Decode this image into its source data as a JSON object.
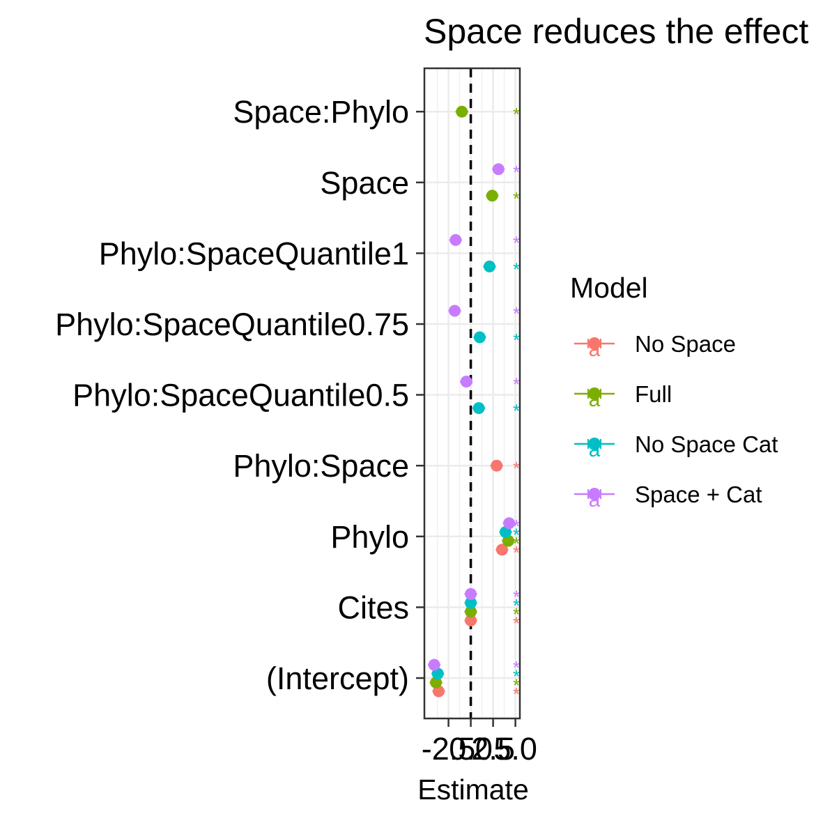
{
  "chart_data": {
    "type": "dot",
    "title": "Space reduces the effect",
    "xlabel": "Estimate",
    "ylabel": "",
    "xlim": [
      -5.2,
      5.5
    ],
    "xticks": [
      -2.5,
      0.0,
      2.5,
      5.0
    ],
    "xtick_labels": [
      "-2.5",
      "0.0",
      "2.5",
      "5.0"
    ],
    "reference_line_x": 0,
    "categories": [
      "(Intercept)",
      "Cites",
      "Phylo",
      "Phylo:Space",
      "Phylo:SpaceQuantile0.5",
      "Phylo:SpaceQuantile0.75",
      "Phylo:SpaceQuantile1",
      "Space",
      "Space:Phylo"
    ],
    "significance_marker": "*",
    "legend": {
      "title": "Model",
      "position": "right",
      "key_glyph": "a"
    },
    "series": [
      {
        "name": "No Space",
        "color": "#F8766D",
        "points": [
          {
            "term": "(Intercept)",
            "estimate": -3.6,
            "significant": true
          },
          {
            "term": "Cites",
            "estimate": 0.0,
            "significant": true
          },
          {
            "term": "Phylo",
            "estimate": 3.5,
            "significant": true
          },
          {
            "term": "Phylo:Space",
            "estimate": 2.9,
            "significant": true
          }
        ]
      },
      {
        "name": "Full",
        "color": "#7CAE00",
        "points": [
          {
            "term": "(Intercept)",
            "estimate": -3.9,
            "significant": true
          },
          {
            "term": "Cites",
            "estimate": 0.0,
            "significant": true
          },
          {
            "term": "Phylo",
            "estimate": 4.2,
            "significant": true
          },
          {
            "term": "Space",
            "estimate": 2.4,
            "significant": true
          },
          {
            "term": "Space:Phylo",
            "estimate": -1.0,
            "significant": true
          }
        ]
      },
      {
        "name": "No Space Cat",
        "color": "#00BFC4",
        "points": [
          {
            "term": "(Intercept)",
            "estimate": -3.7,
            "significant": true
          },
          {
            "term": "Cites",
            "estimate": 0.0,
            "significant": true
          },
          {
            "term": "Phylo",
            "estimate": 3.9,
            "significant": true
          },
          {
            "term": "Phylo:SpaceQuantile0.5",
            "estimate": 0.9,
            "significant": true
          },
          {
            "term": "Phylo:SpaceQuantile0.75",
            "estimate": 1.0,
            "significant": true
          },
          {
            "term": "Phylo:SpaceQuantile1",
            "estimate": 2.1,
            "significant": true
          }
        ]
      },
      {
        "name": "Space + Cat",
        "color": "#C77CFF",
        "points": [
          {
            "term": "(Intercept)",
            "estimate": -4.1,
            "significant": true
          },
          {
            "term": "Cites",
            "estimate": 0.0,
            "significant": true
          },
          {
            "term": "Phylo",
            "estimate": 4.3,
            "significant": true
          },
          {
            "term": "Phylo:SpaceQuantile0.5",
            "estimate": -0.5,
            "significant": true
          },
          {
            "term": "Phylo:SpaceQuantile0.75",
            "estimate": -1.8,
            "significant": true
          },
          {
            "term": "Phylo:SpaceQuantile1",
            "estimate": -1.7,
            "significant": true
          },
          {
            "term": "Space",
            "estimate": 3.1,
            "significant": true
          }
        ]
      }
    ]
  }
}
